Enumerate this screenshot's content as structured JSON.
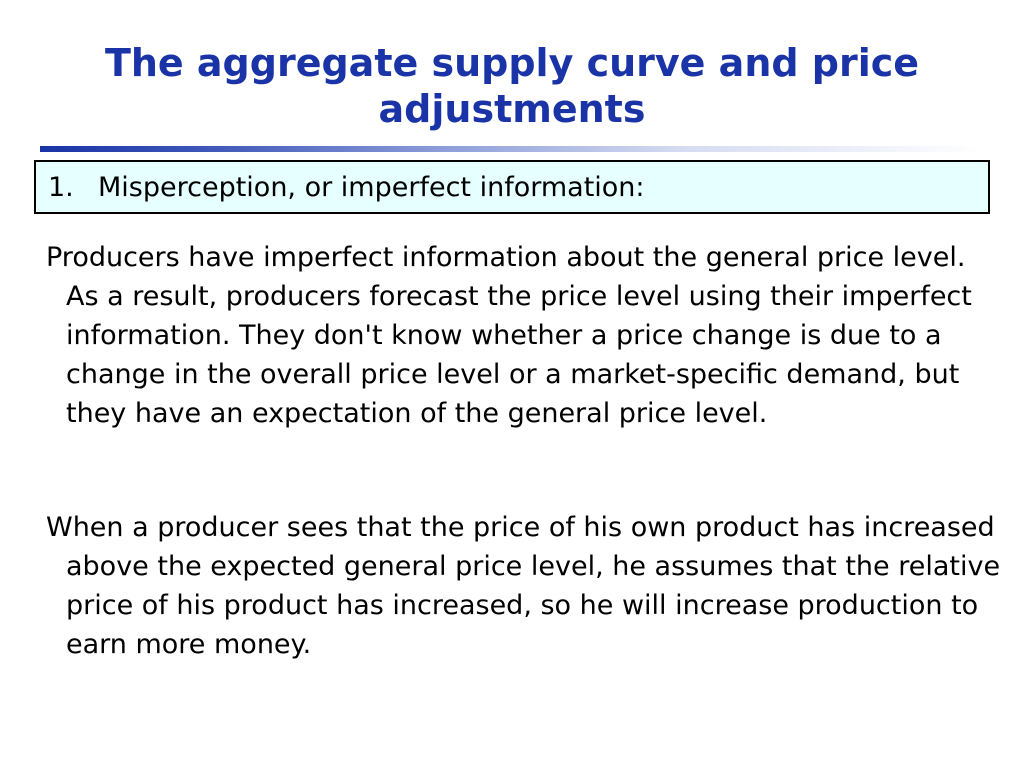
{
  "slide": {
    "title": "The aggregate supply curve and price adjustments",
    "point": {
      "number": "1.",
      "text": "Misperception, or imperfect information:"
    },
    "paragraphs": [
      "Producers have imperfect information about the general price level. As a result, producers forecast the price level using their imperfect information. They don't know whether a price change is due to a change in the overall price level or a market-specific demand, but they have an expectation of the general price level.",
      "When a producer sees that the price of his own product has increased above the expected general price level, he assumes that the relative price of his product has increased, so he will increase production to earn more money."
    ]
  },
  "colors": {
    "title": "#1a33a6",
    "box_background": "#e6ffff",
    "box_border": "#000000",
    "text": "#000000"
  }
}
